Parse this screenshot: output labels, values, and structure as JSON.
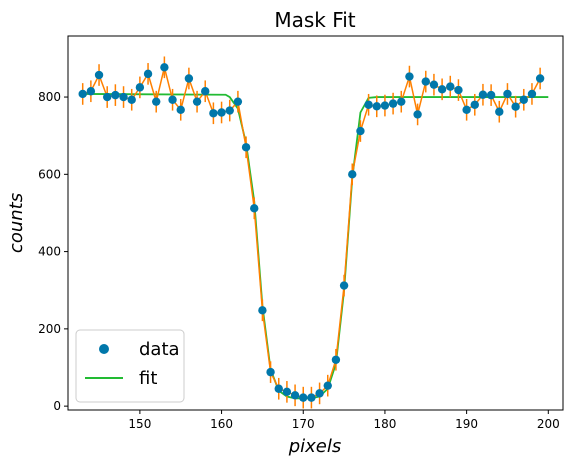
{
  "chart_data": {
    "type": "scatter",
    "title": "Mask Fit",
    "xlabel": "pixels",
    "ylabel": "counts",
    "xlim": [
      141.2,
      201.8
    ],
    "ylim": [
      -10,
      958
    ],
    "xticks": [
      150,
      160,
      170,
      180,
      190,
      200
    ],
    "yticks": [
      0,
      200,
      400,
      600,
      800
    ],
    "grid": false,
    "legend_placement": "bottom-left",
    "colors": {
      "data_marker": "#0077aa",
      "errorbar": "#ff8000",
      "connect_line": "#ff8000",
      "fit": "#22bb33"
    },
    "series": [
      {
        "name": "data",
        "x": [
          143,
          144,
          145,
          146,
          147,
          148,
          149,
          150,
          151,
          152,
          153,
          154,
          155,
          156,
          157,
          158,
          159,
          160,
          161,
          162,
          163,
          164,
          165,
          166,
          167,
          168,
          169,
          170,
          171,
          172,
          173,
          174,
          175,
          176,
          177,
          178,
          179,
          180,
          181,
          182,
          183,
          184,
          185,
          186,
          187,
          188,
          189,
          190,
          191,
          192,
          193,
          194,
          195,
          196,
          197,
          198,
          199
        ],
        "y": [
          808,
          815,
          857,
          800,
          805,
          800,
          793,
          825,
          860,
          788,
          877,
          793,
          767,
          848,
          788,
          815,
          758,
          760,
          765,
          788,
          670,
          512,
          248,
          88,
          45,
          37,
          28,
          22,
          22,
          33,
          53,
          120,
          312,
          600,
          712,
          780,
          776,
          778,
          783,
          788,
          853,
          755,
          840,
          832,
          820,
          827,
          818,
          767,
          780,
          806,
          805,
          762,
          808,
          775,
          793,
          808,
          848
        ],
        "yerr": 28
      },
      {
        "name": "fit",
        "x": [
          143,
          160.5,
          161,
          162,
          163,
          164,
          165,
          166,
          167,
          168,
          169,
          170,
          171,
          172,
          173,
          174,
          175,
          176,
          177,
          178,
          179,
          180,
          200
        ],
        "y": [
          808,
          806,
          800,
          770,
          680,
          530,
          260,
          95,
          40,
          25,
          20,
          20,
          20,
          25,
          45,
          110,
          300,
          590,
          760,
          798,
          800,
          800,
          800
        ]
      }
    ]
  }
}
